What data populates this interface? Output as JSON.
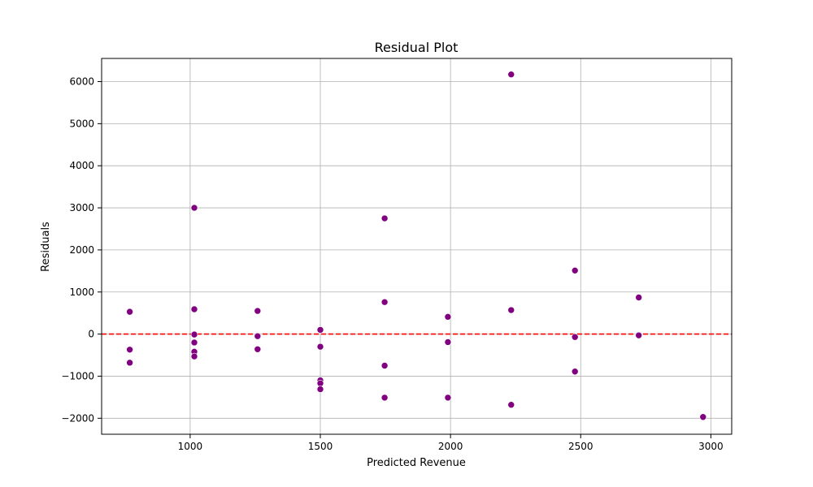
{
  "chart_data": {
    "type": "scatter",
    "title": "Residual Plot",
    "xlabel": "Predicted Revenue",
    "ylabel": "Residuals",
    "xlim": [
      660,
      3080
    ],
    "ylim": [
      -2380,
      6550
    ],
    "xticks": [
      1000,
      1500,
      2000,
      2500,
      3000
    ],
    "yticks": [
      -2000,
      -1000,
      0,
      1000,
      2000,
      3000,
      4000,
      5000,
      6000
    ],
    "grid": true,
    "point_color": "#800080",
    "reference_line": {
      "y": 0,
      "color": "#ff0000",
      "style": "dashed"
    },
    "points": [
      {
        "x": 768,
        "y": 530
      },
      {
        "x": 768,
        "y": -370
      },
      {
        "x": 768,
        "y": -680
      },
      {
        "x": 1016,
        "y": 3000
      },
      {
        "x": 1016,
        "y": 590
      },
      {
        "x": 1016,
        "y": -10
      },
      {
        "x": 1016,
        "y": -200
      },
      {
        "x": 1016,
        "y": -420
      },
      {
        "x": 1016,
        "y": -530
      },
      {
        "x": 1259,
        "y": 550
      },
      {
        "x": 1259,
        "y": -50
      },
      {
        "x": 1259,
        "y": -360
      },
      {
        "x": 1500,
        "y": 100
      },
      {
        "x": 1500,
        "y": -300
      },
      {
        "x": 1500,
        "y": -1100
      },
      {
        "x": 1500,
        "y": -1170
      },
      {
        "x": 1500,
        "y": -1310
      },
      {
        "x": 1747,
        "y": 2750
      },
      {
        "x": 1747,
        "y": 760
      },
      {
        "x": 1747,
        "y": -750
      },
      {
        "x": 1747,
        "y": -1510
      },
      {
        "x": 1990,
        "y": 410
      },
      {
        "x": 1990,
        "y": -190
      },
      {
        "x": 1990,
        "y": -1510
      },
      {
        "x": 2233,
        "y": 6170
      },
      {
        "x": 2233,
        "y": 570
      },
      {
        "x": 2233,
        "y": -1680
      },
      {
        "x": 2478,
        "y": 1510
      },
      {
        "x": 2478,
        "y": -70
      },
      {
        "x": 2478,
        "y": -890
      },
      {
        "x": 2723,
        "y": 870
      },
      {
        "x": 2723,
        "y": -30
      },
      {
        "x": 2970,
        "y": -1970
      }
    ]
  }
}
